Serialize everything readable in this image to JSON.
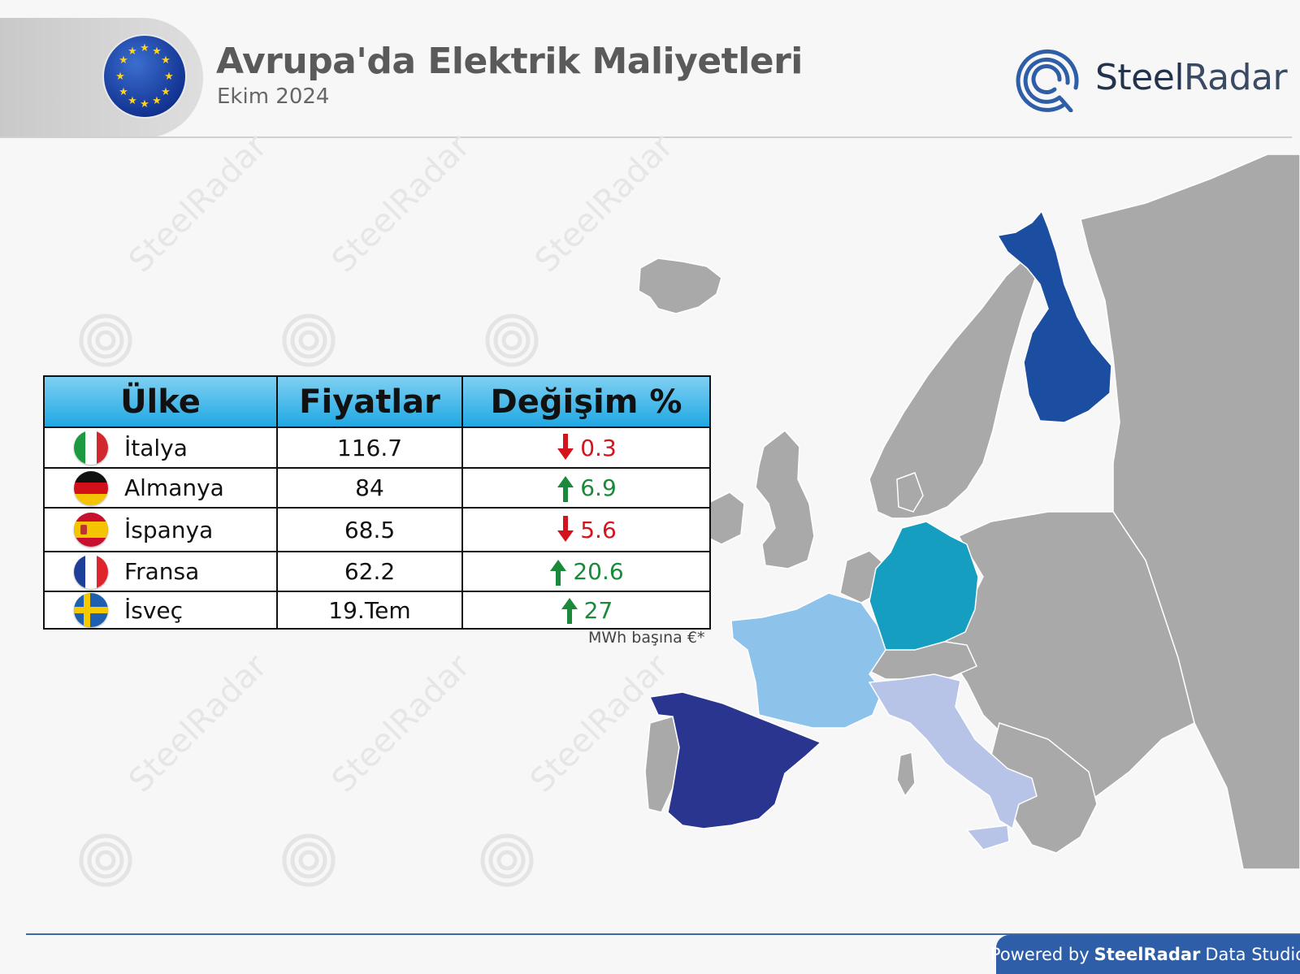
{
  "header": {
    "title": "Avrupa'da Elektrik Maliyetleri",
    "subtitle": "Ekim 2024",
    "logo_bold": "Steel",
    "logo_light": "Radar"
  },
  "watermark": {
    "text": "SteelRadar"
  },
  "table": {
    "headers": [
      "Ülke",
      "Fiyatlar",
      "Değişim %"
    ],
    "rows": [
      {
        "country": "İtalya",
        "price": "116.7",
        "change": "0.3",
        "direction": "down",
        "flag": "italy-flag-icon"
      },
      {
        "country": "Almanya",
        "price": "84",
        "change": "6.9",
        "direction": "up",
        "flag": "germany-flag-icon"
      },
      {
        "country": "İspanya",
        "price": "68.5",
        "change": "5.6",
        "direction": "down",
        "flag": "spain-flag-icon"
      },
      {
        "country": "Fransa",
        "price": "62.2",
        "change": "20.6",
        "direction": "up",
        "flag": "france-flag-icon"
      },
      {
        "country": "İsveç",
        "price": "19.Tem",
        "change": "27",
        "direction": "up",
        "flag": "sweden-flag-icon"
      }
    ],
    "unit_note": "MWh başına €*"
  },
  "map": {
    "highlighted": [
      {
        "country": "Finland",
        "color": "#1b4ea0"
      },
      {
        "country": "Germany",
        "color": "#169ec0"
      },
      {
        "country": "France",
        "color": "#8dc3ea"
      },
      {
        "country": "Spain",
        "color": "#2a3590"
      },
      {
        "country": "Italy",
        "color": "#b7c4e8"
      }
    ],
    "base_color": "#a9a9a9"
  },
  "colors": {
    "up": "#1a8a3a",
    "down": "#d4141c",
    "header_blue": "#1fa8e3",
    "footer": "#2f5ea8"
  },
  "footer": {
    "prefix": "Powered by",
    "brand": "SteelRadar",
    "suffix": "Data Studio"
  }
}
